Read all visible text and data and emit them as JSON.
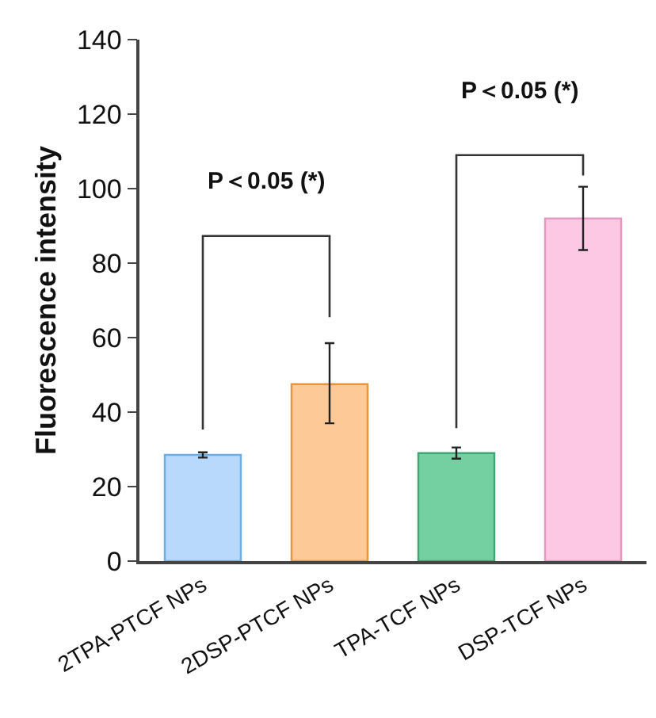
{
  "chart_data": {
    "type": "bar",
    "ylabel": "Fluorescence intensity",
    "categories": [
      "2TPA-PTCF NPs",
      "2DSP-PTCF NPs",
      "TPA-TCF NPs",
      "DSP-TCF NPs"
    ],
    "values": [
      28.5,
      47.5,
      29,
      92
    ],
    "colors": [
      "#b8d9fb",
      "#fdc997",
      "#74d0a0",
      "#fdc8e4"
    ],
    "errors": [
      0.7,
      [
        37,
        58.5
      ],
      [
        27.5,
        30.5
      ],
      [
        83.5,
        100.5
      ]
    ],
    "ylim": [
      0,
      140
    ],
    "yticks": [
      0,
      20,
      40,
      60,
      80,
      100,
      120,
      140
    ],
    "annotations": [
      "P＜0.05 (*)",
      "P＜0.05 (*)"
    ]
  }
}
